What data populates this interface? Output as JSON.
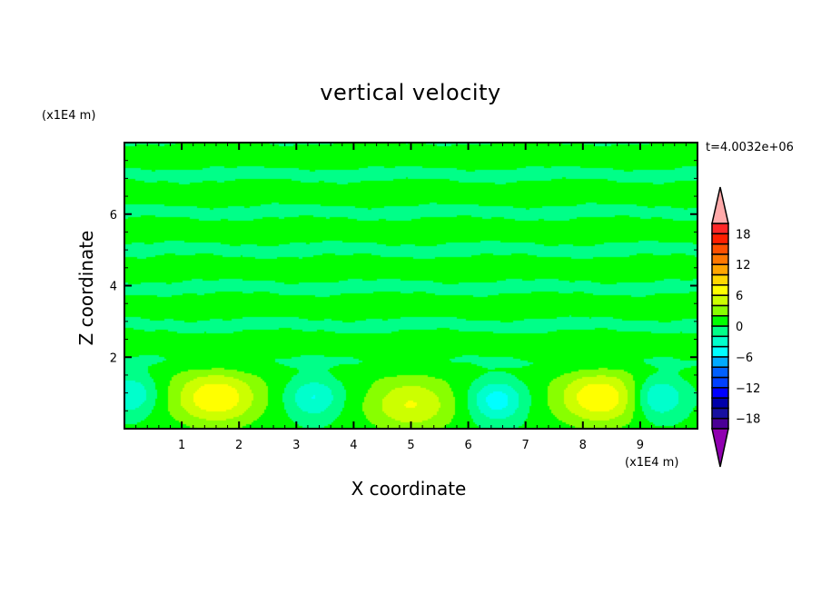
{
  "chart_data": {
    "type": "heatmap",
    "subtype": "filled-contour",
    "title": "vertical velocity",
    "xlabel": "X coordinate",
    "ylabel": "Z coordinate",
    "x_unit": "(x1E4 m)",
    "y_unit": "(x1E4 m)",
    "annotation": "t=4.0032e+06",
    "xlim": [
      0,
      10
    ],
    "ylim": [
      0,
      8
    ],
    "x_ticks": [
      1,
      2,
      3,
      4,
      5,
      6,
      7,
      8,
      9
    ],
    "y_ticks": [
      2,
      4,
      6
    ],
    "colorbar": {
      "levels": [
        -20,
        -18,
        -16,
        -14,
        -12,
        -10,
        -8,
        -6,
        -4,
        -2,
        0,
        2,
        4,
        6,
        8,
        10,
        12,
        14,
        16,
        18,
        20
      ],
      "tick_labels": [
        "18",
        "12",
        "6",
        "0",
        "-6",
        "-12",
        "-18"
      ],
      "tick_values": [
        18,
        12,
        6,
        0,
        -6,
        -12,
        -18
      ],
      "colors_low_to_high": [
        "#4b0096",
        "#1810a0",
        "#0000aa",
        "#0000ff",
        "#0040ff",
        "#0060ff",
        "#00aaff",
        "#00ffff",
        "#00ffcc",
        "#00ff88",
        "#00ff00",
        "#88ff00",
        "#ccff00",
        "#ffff00",
        "#ffd700",
        "#ffa500",
        "#ff7800",
        "#ff5000",
        "#ff2000",
        "#ff2828"
      ],
      "over_color": "#ffaaaa",
      "under_color": "#9000b0"
    },
    "features": [
      {
        "type": "updraft",
        "x": 1.6,
        "z": 0.9,
        "max": 7
      },
      {
        "type": "updraft",
        "x": 5.0,
        "z": 0.7,
        "max": 5
      },
      {
        "type": "updraft",
        "x": 8.3,
        "z": 0.9,
        "max": 7
      },
      {
        "type": "downdraft",
        "x": 0.1,
        "z": 1.0,
        "min": -4
      },
      {
        "type": "downdraft",
        "x": 3.3,
        "z": 0.9,
        "min": -4
      },
      {
        "type": "downdraft",
        "x": 6.5,
        "z": 0.8,
        "min": -5
      },
      {
        "type": "downdraft",
        "x": 9.3,
        "z": 0.9,
        "min": -5
      }
    ],
    "upper_region": "alternating horizontal bands between -2..0 and 0..2"
  }
}
